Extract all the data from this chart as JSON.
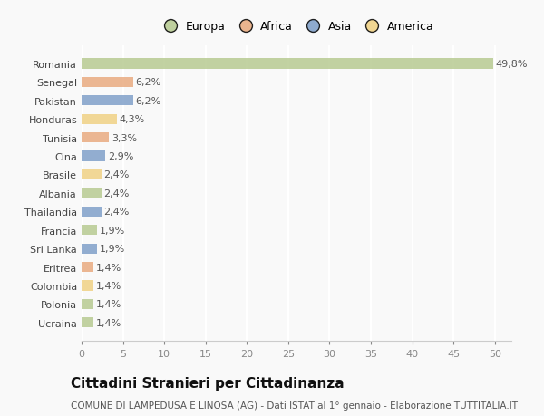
{
  "categories": [
    "Romania",
    "Senegal",
    "Pakistan",
    "Honduras",
    "Tunisia",
    "Cina",
    "Brasile",
    "Albania",
    "Thailandia",
    "Francia",
    "Sri Lanka",
    "Eritrea",
    "Colombia",
    "Polonia",
    "Ucraina"
  ],
  "values": [
    49.8,
    6.2,
    6.2,
    4.3,
    3.3,
    2.9,
    2.4,
    2.4,
    2.4,
    1.9,
    1.9,
    1.4,
    1.4,
    1.4,
    1.4
  ],
  "labels": [
    "49,8%",
    "6,2%",
    "6,2%",
    "4,3%",
    "3,3%",
    "2,9%",
    "2,4%",
    "2,4%",
    "2,4%",
    "1,9%",
    "1,9%",
    "1,4%",
    "1,4%",
    "1,4%",
    "1,4%"
  ],
  "colors": [
    "#b5c98e",
    "#e8a87c",
    "#7b9dc7",
    "#f0d080",
    "#e8a87c",
    "#7b9dc7",
    "#f0d080",
    "#b5c98e",
    "#7b9dc7",
    "#b5c98e",
    "#7b9dc7",
    "#e8a87c",
    "#f0d080",
    "#b5c98e",
    "#b5c98e"
  ],
  "legend_labels": [
    "Europa",
    "Africa",
    "Asia",
    "America"
  ],
  "legend_colors": [
    "#b5c98e",
    "#e8a87c",
    "#7b9dc7",
    "#f0d080"
  ],
  "title": "Cittadini Stranieri per Cittadinanza",
  "subtitle": "COMUNE DI LAMPEDUSA E LINOSA (AG) - Dati ISTAT al 1° gennaio - Elaborazione TUTTITALIA.IT",
  "xlim": [
    0,
    52
  ],
  "xticks": [
    0,
    5,
    10,
    15,
    20,
    25,
    30,
    35,
    40,
    45,
    50
  ],
  "background_color": "#f9f9f9",
  "grid_color": "#ffffff",
  "bar_height": 0.55,
  "label_fontsize": 8,
  "tick_fontsize": 8,
  "title_fontsize": 11,
  "subtitle_fontsize": 7.5
}
